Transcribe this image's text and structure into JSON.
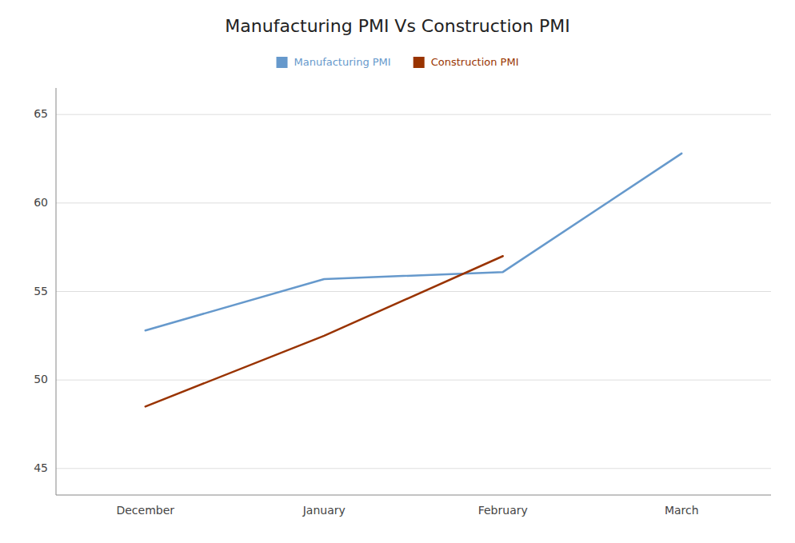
{
  "chart_data": {
    "type": "line",
    "title": "Manufacturing PMI Vs Construction PMI",
    "categories": [
      "December",
      "January",
      "February",
      "March"
    ],
    "series": [
      {
        "name": "Manufacturing PMI",
        "color": "#6699CC",
        "values": [
          52.8,
          55.7,
          56.1,
          62.8
        ]
      },
      {
        "name": "Construction PMI",
        "color": "#993300",
        "values": [
          48.5,
          52.5,
          57.0,
          null
        ]
      }
    ],
    "ylim": [
      43.5,
      66.5
    ],
    "yticks": [
      45,
      50,
      55,
      60,
      65
    ],
    "grid": true,
    "legend": "top"
  }
}
